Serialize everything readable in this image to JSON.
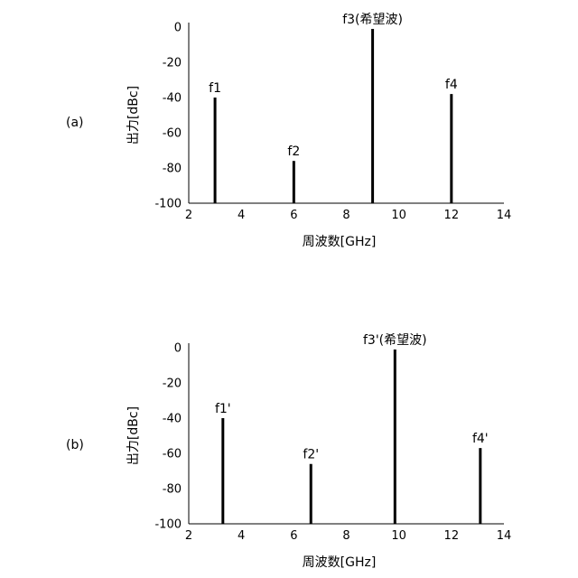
{
  "chart_data": [
    {
      "type": "bar",
      "panel_label": "(a)",
      "xlabel": "周波数[GHz]",
      "ylabel": "出力[dBc]",
      "xlim": [
        2,
        14
      ],
      "ylim": [
        -100,
        0
      ],
      "xticks": [
        "2",
        "4",
        "6",
        "8",
        "10",
        "12",
        "14"
      ],
      "yticks": [
        "0",
        "-20",
        "-40",
        "-60",
        "-80",
        "-100"
      ],
      "grid": false,
      "points": [
        {
          "label": "f1",
          "x": 3.0,
          "y": -40
        },
        {
          "label": "f2",
          "x": 6.0,
          "y": -76
        },
        {
          "label": "f3(希望波)",
          "x": 9.0,
          "y": -1
        },
        {
          "label": "f4",
          "x": 12.0,
          "y": -38
        }
      ]
    },
    {
      "type": "bar",
      "panel_label": "(b)",
      "xlabel": "周波数[GHz]",
      "ylabel": "出力[dBc]",
      "xlim": [
        2,
        14
      ],
      "ylim": [
        -100,
        0
      ],
      "xticks": [
        "2",
        "4",
        "6",
        "8",
        "10",
        "12",
        "14"
      ],
      "yticks": [
        "0",
        "-20",
        "-40",
        "-60",
        "-80",
        "-100"
      ],
      "grid": false,
      "points": [
        {
          "label": "f1'",
          "x": 3.3,
          "y": -40
        },
        {
          "label": "f2'",
          "x": 6.65,
          "y": -66
        },
        {
          "label": "f3'(希望波)",
          "x": 9.85,
          "y": -1
        },
        {
          "label": "f4'",
          "x": 13.1,
          "y": -57
        }
      ]
    }
  ]
}
